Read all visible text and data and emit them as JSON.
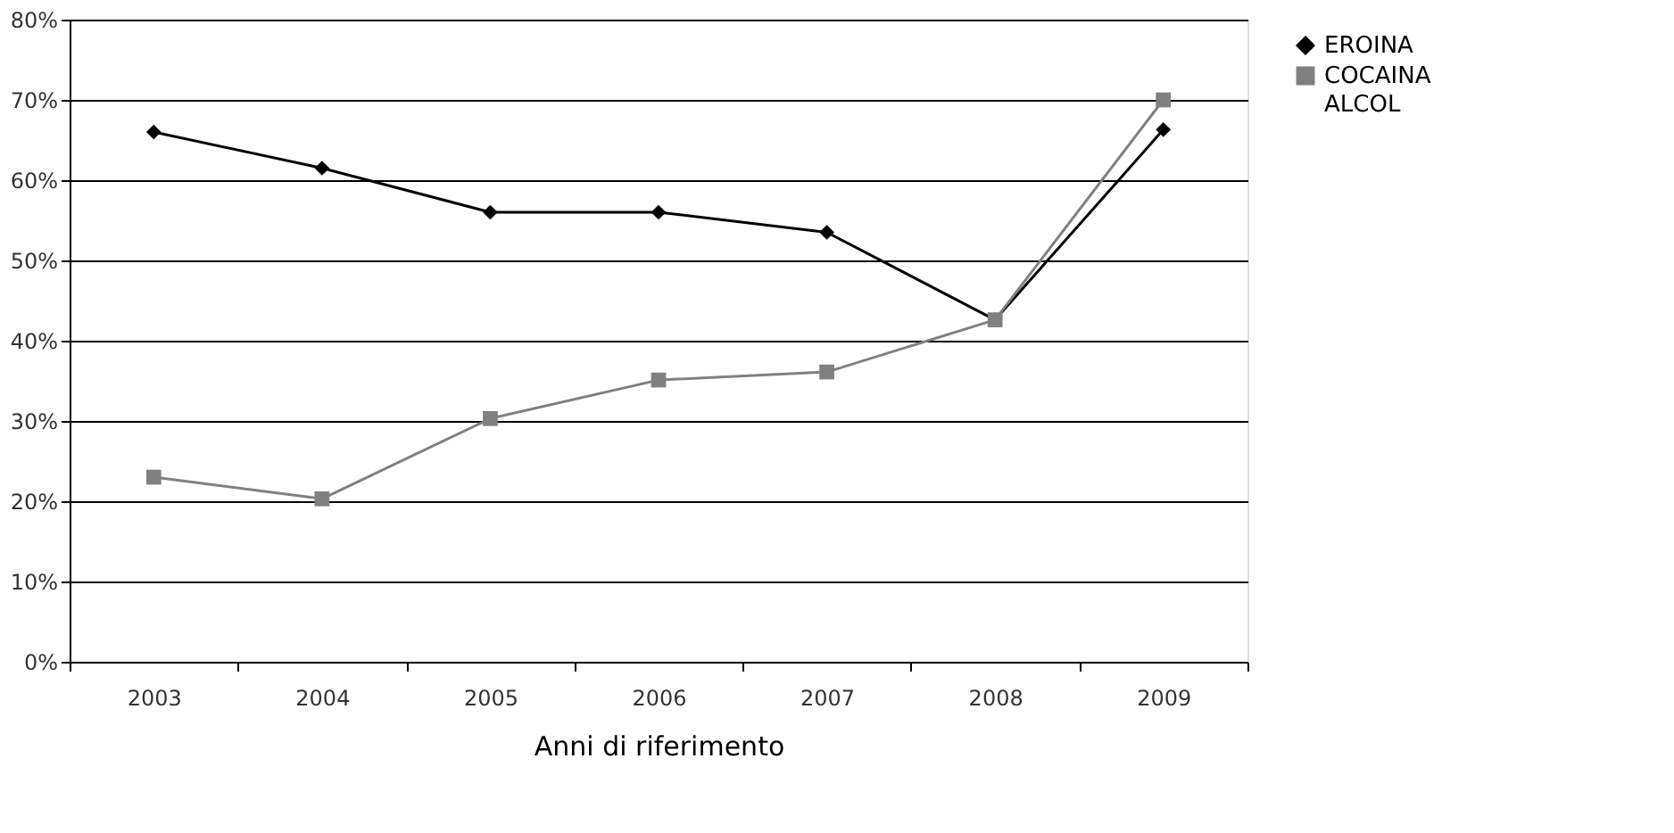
{
  "chart_data": {
    "type": "line",
    "xlabel": "Anni di riferimento",
    "categories": [
      "2003",
      "2004",
      "2005",
      "2006",
      "2007",
      "2008",
      "2009"
    ],
    "series": [
      {
        "name": "EROINA",
        "color": "#000000",
        "marker": "diamond",
        "values": [
          66.0,
          61.5,
          56.0,
          56.0,
          53.5,
          42.6,
          66.3
        ]
      },
      {
        "name": "COCAINA",
        "color": "#808080",
        "marker": "square",
        "values": [
          23.0,
          20.3,
          30.3,
          35.1,
          36.1,
          42.6,
          70.0
        ]
      },
      {
        "name": "ALCOL",
        "marker": "none",
        "values": [
          null,
          null,
          null,
          null,
          null,
          null,
          null
        ]
      }
    ],
    "ylim": [
      0,
      80
    ],
    "yticks": [
      {
        "value": 0,
        "label": "0%"
      },
      {
        "value": 10,
        "label": "10%"
      },
      {
        "value": 20,
        "label": "20%"
      },
      {
        "value": 30,
        "label": "30%"
      },
      {
        "value": 40,
        "label": "40%"
      },
      {
        "value": 50,
        "label": "50%"
      },
      {
        "value": 60,
        "label": "60%"
      },
      {
        "value": 70,
        "label": "70%"
      },
      {
        "value": 80,
        "label": "80%"
      }
    ],
    "grid": "y",
    "legend": "right",
    "line_style": "solid"
  }
}
